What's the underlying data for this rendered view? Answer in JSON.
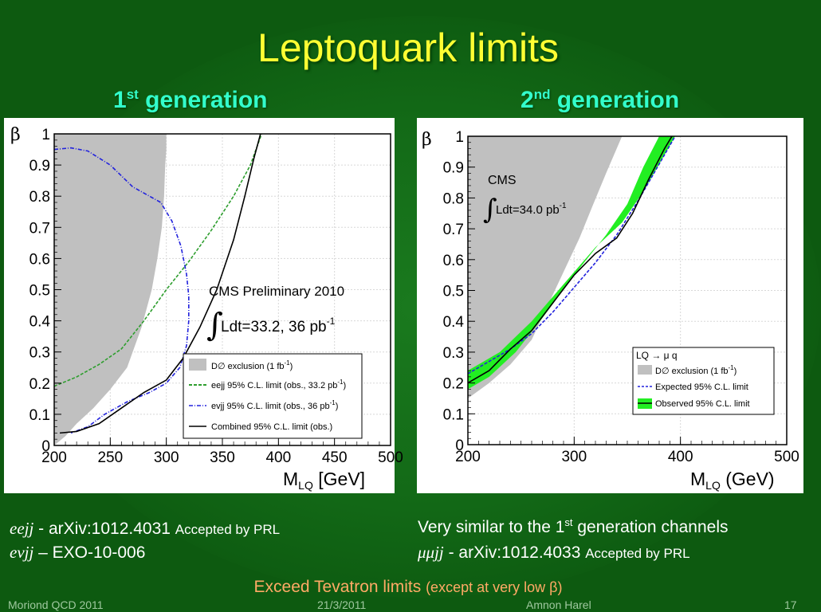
{
  "slide": {
    "title": "Leptoquark limits",
    "gen1_num": "1",
    "gen1_sup": "st",
    "gen1_rest": " generation",
    "gen2_num": "2",
    "gen2_sup": "nd",
    "gen2_rest": " generation",
    "ref1_channel": "eejj",
    "ref1_text": " - arXiv:1012.4031 ",
    "ref1_status": "Accepted by PRL",
    "ref2_channel": "evjj",
    "ref2_text": " – EXO-10-006",
    "similar_text": "Very similar to the 1",
    "similar_sup": "st",
    "similar_rest": " generation channels",
    "ref3_channel": "μμjj",
    "ref3_text": " - arXiv:1012.4033 ",
    "ref3_status": "Accepted by PRL",
    "exceed_main": "Exceed Tevatron limits ",
    "exceed_note": "(except at very low β)",
    "footer_left": "Moriond QCD 2011",
    "footer_date": "21/3/2011",
    "footer_author": "Amnon Harel",
    "footer_page": "17"
  },
  "colors": {
    "title": "#ffff33",
    "generation": "#33ffcc",
    "exceed": "#ffaa66",
    "background": "#0d5a10",
    "exclusion_gray": "#c0c0c0",
    "eejj_green": "#2e9e2e",
    "evjj_blue": "#2222dd",
    "band_green": "#22ee22"
  },
  "chart_data": [
    {
      "type": "line",
      "xlabel_main": "M",
      "xlabel_sub": "LQ",
      "xlabel_unit": " [GeV]",
      "ylabel": "β",
      "xlim": [
        200,
        500
      ],
      "ylim": [
        0,
        1
      ],
      "xticks": [
        "200",
        "250",
        "300",
        "350",
        "400",
        "450",
        "500"
      ],
      "yticks": [
        "0",
        "0.1",
        "0.2",
        "0.3",
        "0.4",
        "0.5",
        "0.6",
        "0.7",
        "0.8",
        "0.9",
        "1"
      ],
      "grid": true,
      "annotation_title": "CMS Preliminary 2010",
      "annotation_lumi": "Ldt=33.2, 36 pb",
      "annotation_lumi_sup": "-1",
      "legend_position": "bottom-right",
      "exclusion_name": "D∅ exclusion (1 fb",
      "exclusion_sup": "-1",
      "exclusion_boundary": [
        {
          "x": 200,
          "y": 0.0
        },
        {
          "x": 210,
          "y": 0.03
        },
        {
          "x": 220,
          "y": 0.07
        },
        {
          "x": 235,
          "y": 0.12
        },
        {
          "x": 250,
          "y": 0.18
        },
        {
          "x": 265,
          "y": 0.25
        },
        {
          "x": 278,
          "y": 0.38
        },
        {
          "x": 287,
          "y": 0.5
        },
        {
          "x": 292,
          "y": 0.6
        },
        {
          "x": 296,
          "y": 0.7
        },
        {
          "x": 298,
          "y": 0.8
        },
        {
          "x": 299,
          "y": 0.9
        },
        {
          "x": 300,
          "y": 0.95
        },
        {
          "x": 300,
          "y": 1.0
        }
      ],
      "series": [
        {
          "name": "eejj 95% C.L. limit (obs., 33.2 pb",
          "name_sup": "-1",
          "name_tail": ")",
          "style": "dashed",
          "color": "#2e9e2e",
          "points": [
            {
              "x": 200,
              "y": 0.19
            },
            {
              "x": 220,
              "y": 0.22
            },
            {
              "x": 240,
              "y": 0.26
            },
            {
              "x": 260,
              "y": 0.31
            },
            {
              "x": 280,
              "y": 0.4
            },
            {
              "x": 300,
              "y": 0.5
            },
            {
              "x": 320,
              "y": 0.59
            },
            {
              "x": 340,
              "y": 0.69
            },
            {
              "x": 360,
              "y": 0.8
            },
            {
              "x": 375,
              "y": 0.9
            },
            {
              "x": 385,
              "y": 1.0
            }
          ]
        },
        {
          "name": "evjj 95% C.L. limit (obs., 36 pb",
          "name_sup": "-1",
          "name_tail": ")",
          "style": "dashdot",
          "color": "#2222dd",
          "points": [
            {
              "x": 200,
              "y": 0.95
            },
            {
              "x": 215,
              "y": 0.955
            },
            {
              "x": 230,
              "y": 0.945
            },
            {
              "x": 250,
              "y": 0.9
            },
            {
              "x": 270,
              "y": 0.83
            },
            {
              "x": 285,
              "y": 0.8
            },
            {
              "x": 295,
              "y": 0.78
            },
            {
              "x": 305,
              "y": 0.72
            },
            {
              "x": 313,
              "y": 0.64
            },
            {
              "x": 318,
              "y": 0.55
            },
            {
              "x": 320,
              "y": 0.48
            },
            {
              "x": 320,
              "y": 0.4
            },
            {
              "x": 318,
              "y": 0.32
            },
            {
              "x": 312,
              "y": 0.25
            },
            {
              "x": 300,
              "y": 0.2
            },
            {
              "x": 285,
              "y": 0.17
            },
            {
              "x": 265,
              "y": 0.14
            },
            {
              "x": 245,
              "y": 0.1
            },
            {
              "x": 230,
              "y": 0.06
            },
            {
              "x": 215,
              "y": 0.04
            }
          ]
        },
        {
          "name": "Combined 95% C.L. limit (obs.)",
          "style": "solid",
          "color": "#000000",
          "points": [
            {
              "x": 205,
              "y": 0.04
            },
            {
              "x": 220,
              "y": 0.045
            },
            {
              "x": 240,
              "y": 0.07
            },
            {
              "x": 260,
              "y": 0.12
            },
            {
              "x": 280,
              "y": 0.17
            },
            {
              "x": 300,
              "y": 0.21
            },
            {
              "x": 315,
              "y": 0.28
            },
            {
              "x": 330,
              "y": 0.38
            },
            {
              "x": 345,
              "y": 0.5
            },
            {
              "x": 360,
              "y": 0.66
            },
            {
              "x": 370,
              "y": 0.8
            },
            {
              "x": 378,
              "y": 0.92
            },
            {
              "x": 384,
              "y": 1.0
            }
          ]
        }
      ]
    },
    {
      "type": "line",
      "xlabel_main": "M",
      "xlabel_sub": "LQ",
      "xlabel_unit": " (GeV)",
      "ylabel": "β",
      "xlim": [
        200,
        500
      ],
      "ylim": [
        0,
        1
      ],
      "xticks": [
        "200",
        "300",
        "400",
        "500"
      ],
      "yticks": [
        "0",
        "0.1",
        "0.2",
        "0.3",
        "0.4",
        "0.5",
        "0.6",
        "0.7",
        "0.8",
        "0.9",
        "1"
      ],
      "grid": true,
      "annotation_title": "CMS",
      "annotation_lumi": "Ldt=34.0 pb",
      "annotation_lumi_sup": "-1",
      "legend_position": "bottom-right",
      "legend_header": "LQ → μ q",
      "exclusion_name": "D∅ exclusion (1 fb",
      "exclusion_sup": "-1",
      "exclusion_boundary": [
        {
          "x": 200,
          "y": 0.15
        },
        {
          "x": 220,
          "y": 0.2
        },
        {
          "x": 240,
          "y": 0.26
        },
        {
          "x": 260,
          "y": 0.34
        },
        {
          "x": 275,
          "y": 0.45
        },
        {
          "x": 290,
          "y": 0.56
        },
        {
          "x": 305,
          "y": 0.67
        },
        {
          "x": 318,
          "y": 0.78
        },
        {
          "x": 330,
          "y": 0.88
        },
        {
          "x": 340,
          "y": 0.96
        },
        {
          "x": 345,
          "y": 1.0
        }
      ],
      "band": {
        "name": "Observed 95% C.L. limit",
        "color": "#22ee22",
        "upper": [
          {
            "x": 200,
            "y": 0.24
          },
          {
            "x": 230,
            "y": 0.3
          },
          {
            "x": 260,
            "y": 0.4
          },
          {
            "x": 290,
            "y": 0.52
          },
          {
            "x": 320,
            "y": 0.64
          },
          {
            "x": 345,
            "y": 0.72
          },
          {
            "x": 365,
            "y": 0.82
          },
          {
            "x": 385,
            "y": 0.94
          },
          {
            "x": 395,
            "y": 1.0
          }
        ],
        "lower": [
          {
            "x": 380,
            "y": 1.0
          },
          {
            "x": 365,
            "y": 0.9
          },
          {
            "x": 350,
            "y": 0.78
          },
          {
            "x": 330,
            "y": 0.68
          },
          {
            "x": 300,
            "y": 0.55
          },
          {
            "x": 270,
            "y": 0.41
          },
          {
            "x": 245,
            "y": 0.3
          },
          {
            "x": 220,
            "y": 0.22
          },
          {
            "x": 200,
            "y": 0.18
          }
        ]
      },
      "series": [
        {
          "name": "Expected 95% C.L. limit",
          "style": "dashed",
          "color": "#2222dd",
          "points": [
            {
              "x": 200,
              "y": 0.23
            },
            {
              "x": 220,
              "y": 0.27
            },
            {
              "x": 240,
              "y": 0.31
            },
            {
              "x": 260,
              "y": 0.36
            },
            {
              "x": 280,
              "y": 0.43
            },
            {
              "x": 300,
              "y": 0.51
            },
            {
              "x": 320,
              "y": 0.59
            },
            {
              "x": 340,
              "y": 0.68
            },
            {
              "x": 360,
              "y": 0.79
            },
            {
              "x": 380,
              "y": 0.91
            },
            {
              "x": 395,
              "y": 1.0
            }
          ]
        },
        {
          "name": "Observed 95% C.L. limit",
          "style": "solid",
          "color": "#000000",
          "points": [
            {
              "x": 200,
              "y": 0.2
            },
            {
              "x": 220,
              "y": 0.24
            },
            {
              "x": 240,
              "y": 0.31
            },
            {
              "x": 260,
              "y": 0.37
            },
            {
              "x": 280,
              "y": 0.46
            },
            {
              "x": 300,
              "y": 0.55
            },
            {
              "x": 320,
              "y": 0.62
            },
            {
              "x": 340,
              "y": 0.67
            },
            {
              "x": 355,
              "y": 0.75
            },
            {
              "x": 370,
              "y": 0.86
            },
            {
              "x": 385,
              "y": 0.96
            },
            {
              "x": 392,
              "y": 1.0
            }
          ]
        }
      ]
    }
  ]
}
